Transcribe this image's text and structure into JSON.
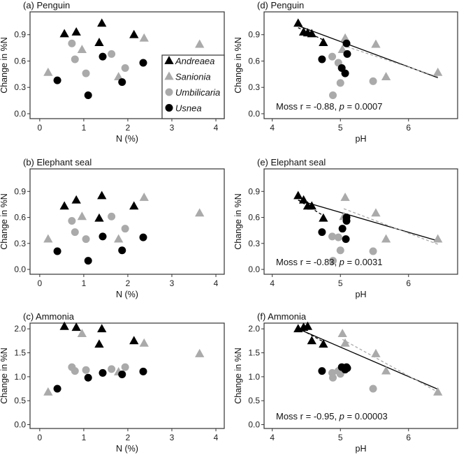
{
  "colors": {
    "Andreaea": "#000000",
    "Sanionia": "#aaaaaa",
    "Umbilicaria": "#aaaaaa",
    "Usnea": "#000000",
    "fit_black": "#000000",
    "fit_grey": "#aaaaaa"
  },
  "legend": {
    "placement": "inside-right of panel (a)",
    "entries": [
      {
        "name": "Andreaea",
        "marker": "triangle",
        "color": "#000000"
      },
      {
        "name": "Sanionia",
        "marker": "triangle",
        "color": "#aaaaaa"
      },
      {
        "name": "Umbilicaria",
        "marker": "circle",
        "color": "#aaaaaa"
      },
      {
        "name": "Usnea",
        "marker": "circle",
        "color": "#000000"
      }
    ]
  },
  "chart_data": [
    {
      "type": "scatter",
      "title": "(a) Penguin",
      "xlabel": "N (%)",
      "ylabel": "Change in %N",
      "xlim": [
        -0.22,
        4.19
      ],
      "ylim": [
        -0.056,
        1.16
      ],
      "xticks": [
        "0",
        "1",
        "2",
        "3",
        "4"
      ],
      "yticks": [
        "0.0",
        "0.3",
        "0.6",
        "0.9"
      ],
      "series": [
        {
          "name": "Andreaea",
          "x": [
            0.56,
            0.83,
            1.35,
            1.41,
            2.14
          ],
          "y": [
            0.91,
            0.93,
            0.81,
            1.03,
            0.9
          ]
        },
        {
          "name": "Sanionia",
          "x": [
            0.19,
            0.96,
            1.79,
            2.37,
            3.63
          ],
          "y": [
            0.47,
            0.73,
            0.42,
            0.86,
            0.79
          ]
        },
        {
          "name": "Umbilicaria",
          "x": [
            0.73,
            0.8,
            1.05,
            1.63,
            1.94
          ],
          "y": [
            0.8,
            0.62,
            0.46,
            0.68,
            0.52
          ]
        },
        {
          "name": "Usnea",
          "x": [
            0.4,
            1.1,
            1.43,
            1.87,
            2.35
          ],
          "y": [
            0.38,
            0.21,
            0.65,
            0.36,
            0.58
          ]
        }
      ]
    },
    {
      "type": "scatter",
      "title": "(b) Elephant seal",
      "xlabel": "N (%)",
      "ylabel": "Change in %N",
      "xlim": [
        -0.22,
        4.19
      ],
      "ylim": [
        -0.056,
        1.16
      ],
      "xticks": [
        "0",
        "1",
        "2",
        "3",
        "4"
      ],
      "yticks": [
        "0.0",
        "0.3",
        "0.6",
        "0.9"
      ],
      "series": [
        {
          "name": "Andreaea",
          "x": [
            0.56,
            0.83,
            1.35,
            1.41,
            2.14
          ],
          "y": [
            0.73,
            0.8,
            0.59,
            0.85,
            0.73
          ]
        },
        {
          "name": "Sanionia",
          "x": [
            0.19,
            0.96,
            1.79,
            2.37,
            3.63
          ],
          "y": [
            0.35,
            0.61,
            0.35,
            0.83,
            0.65
          ]
        },
        {
          "name": "Umbilicaria",
          "x": [
            0.73,
            0.8,
            1.05,
            1.63,
            1.94
          ],
          "y": [
            0.56,
            0.43,
            0.35,
            0.61,
            0.47
          ]
        },
        {
          "name": "Usnea",
          "x": [
            0.4,
            1.1,
            1.43,
            1.87,
            2.35
          ],
          "y": [
            0.21,
            0.1,
            0.38,
            0.22,
            0.37
          ]
        }
      ]
    },
    {
      "type": "scatter",
      "title": "(c) Ammonia",
      "xlabel": "N (%)",
      "ylabel": "Change in %N",
      "xlim": [
        -0.22,
        4.19
      ],
      "ylim": [
        -0.08,
        2.12
      ],
      "xticks": [
        "0",
        "1",
        "2",
        "3",
        "4"
      ],
      "yticks": [
        "0.0",
        "0.5",
        "1.0",
        "1.5",
        "2.0"
      ],
      "series": [
        {
          "name": "Andreaea",
          "x": [
            0.56,
            0.83,
            1.35,
            1.41,
            2.14
          ],
          "y": [
            2.05,
            2.03,
            1.68,
            2.0,
            1.75
          ]
        },
        {
          "name": "Sanionia",
          "x": [
            0.19,
            0.96,
            1.79,
            2.37,
            3.63
          ],
          "y": [
            0.68,
            1.9,
            1.1,
            1.7,
            1.48
          ]
        },
        {
          "name": "Umbilicaria",
          "x": [
            0.73,
            0.8,
            1.05,
            1.63,
            1.94
          ],
          "y": [
            1.2,
            1.12,
            1.14,
            1.16,
            1.2
          ]
        },
        {
          "name": "Usnea",
          "x": [
            0.4,
            1.1,
            1.43,
            1.87,
            2.35
          ],
          "y": [
            0.75,
            0.98,
            1.08,
            1.05,
            1.11
          ]
        }
      ]
    },
    {
      "type": "scatter",
      "title": "(d) Penguin",
      "xlabel": "pH",
      "ylabel": "Change in %N",
      "xlim": [
        3.88,
        6.72
      ],
      "ylim": [
        -0.056,
        1.16
      ],
      "xticks": [
        "4",
        "5",
        "6"
      ],
      "yticks": [
        "0.0",
        "0.3",
        "0.6",
        "0.9"
      ],
      "annotation": {
        "prefix": "Moss r = -0.88, ",
        "p_label": "p",
        "suffix": " = 0.0007"
      },
      "series": [
        {
          "name": "Andreaea",
          "x": [
            4.38,
            4.46,
            4.52,
            4.58,
            4.75
          ],
          "y": [
            1.03,
            0.93,
            0.92,
            0.91,
            0.81
          ]
        },
        {
          "name": "Sanionia",
          "x": [
            5.07,
            5.03,
            5.52,
            5.67,
            6.43
          ],
          "y": [
            0.86,
            0.73,
            0.79,
            0.42,
            0.47
          ]
        },
        {
          "name": "Umbilicaria",
          "x": [
            4.88,
            4.97,
            5.0,
            4.89,
            5.48
          ],
          "y": [
            0.65,
            0.58,
            0.35,
            0.21,
            0.37
          ]
        },
        {
          "name": "Usnea",
          "x": [
            4.73,
            5.02,
            5.07,
            5.09,
            5.1
          ],
          "y": [
            0.62,
            0.52,
            0.46,
            0.8,
            0.68
          ]
        }
      ],
      "fits": [
        {
          "style": "solid",
          "color": "#000000",
          "x": [
            4.35,
            6.43
          ],
          "y": [
            1.01,
            0.41
          ]
        },
        {
          "style": "dashed",
          "color": "#000000",
          "x": [
            4.38,
            4.75
          ],
          "y": [
            0.98,
            0.84
          ]
        },
        {
          "style": "dashed",
          "color": "#aaaaaa",
          "x": [
            5.03,
            6.43
          ],
          "y": [
            0.78,
            0.42
          ]
        }
      ]
    },
    {
      "type": "scatter",
      "title": "(e) Elephant seal",
      "xlabel": "pH",
      "ylabel": "Change in %N",
      "xlim": [
        3.88,
        6.72
      ],
      "ylim": [
        -0.056,
        1.16
      ],
      "xticks": [
        "4",
        "5",
        "6"
      ],
      "yticks": [
        "0.0",
        "0.3",
        "0.6",
        "0.9"
      ],
      "annotation": {
        "prefix": "Moss r = -0.83, ",
        "p_label": "p",
        "suffix": " = 0.0031"
      },
      "series": [
        {
          "name": "Andreaea",
          "x": [
            4.38,
            4.46,
            4.52,
            4.58,
            4.75
          ],
          "y": [
            0.85,
            0.8,
            0.73,
            0.73,
            0.59
          ]
        },
        {
          "name": "Sanionia",
          "x": [
            5.07,
            5.05,
            5.52,
            5.67,
            6.43
          ],
          "y": [
            0.83,
            0.61,
            0.65,
            0.35,
            0.35
          ]
        },
        {
          "name": "Umbilicaria",
          "x": [
            4.88,
            4.97,
            5.0,
            4.89,
            5.48
          ],
          "y": [
            0.38,
            0.37,
            0.22,
            0.1,
            0.21
          ]
        },
        {
          "name": "Usnea",
          "x": [
            4.73,
            5.03,
            5.08,
            5.09,
            5.09
          ],
          "y": [
            0.43,
            0.47,
            0.35,
            0.6,
            0.56
          ]
        }
      ],
      "fits": [
        {
          "style": "solid",
          "color": "#000000",
          "x": [
            4.38,
            6.43
          ],
          "y": [
            0.8,
            0.33
          ]
        },
        {
          "style": "dashed",
          "color": "#000000",
          "x": [
            4.38,
            4.75
          ],
          "y": [
            0.8,
            0.62
          ]
        },
        {
          "style": "dashed",
          "color": "#aaaaaa",
          "x": [
            5.05,
            6.43
          ],
          "y": [
            0.7,
            0.29
          ]
        }
      ]
    },
    {
      "type": "scatter",
      "title": "(f) Ammonia",
      "xlabel": "pH",
      "ylabel": "Change in %N",
      "xlim": [
        3.88,
        6.72
      ],
      "ylim": [
        -0.08,
        2.12
      ],
      "xticks": [
        "4",
        "5",
        "6"
      ],
      "yticks": [
        "0.0",
        "0.5",
        "1.0",
        "1.5",
        "2.0"
      ],
      "annotation": {
        "prefix": "Moss r = -0.95, ",
        "p_label": "p",
        "suffix": " = 0.00003"
      },
      "series": [
        {
          "name": "Andreaea",
          "x": [
            4.38,
            4.46,
            4.52,
            4.58,
            4.75
          ],
          "y": [
            2.0,
            2.03,
            2.05,
            1.75,
            1.68
          ]
        },
        {
          "name": "Sanionia",
          "x": [
            5.03,
            5.07,
            5.52,
            5.67,
            6.43
          ],
          "y": [
            1.9,
            1.7,
            1.48,
            1.12,
            0.68
          ]
        },
        {
          "name": "Umbilicaria",
          "x": [
            4.88,
            4.89,
            4.97,
            5.0,
            5.48
          ],
          "y": [
            1.08,
            0.98,
            1.12,
            1.06,
            0.75
          ]
        },
        {
          "name": "Usnea",
          "x": [
            4.73,
            5.02,
            5.07,
            5.09,
            5.1
          ],
          "y": [
            1.12,
            1.2,
            1.15,
            1.2,
            1.18
          ]
        }
      ],
      "fits": [
        {
          "style": "solid",
          "color": "#000000",
          "x": [
            4.38,
            6.43
          ],
          "y": [
            2.0,
            0.74
          ]
        },
        {
          "style": "dashed",
          "color": "#000000",
          "x": [
            4.38,
            4.75
          ],
          "y": [
            2.02,
            1.73
          ]
        },
        {
          "style": "dashed",
          "color": "#aaaaaa",
          "x": [
            5.03,
            6.43
          ],
          "y": [
            1.78,
            0.68
          ]
        }
      ]
    }
  ]
}
